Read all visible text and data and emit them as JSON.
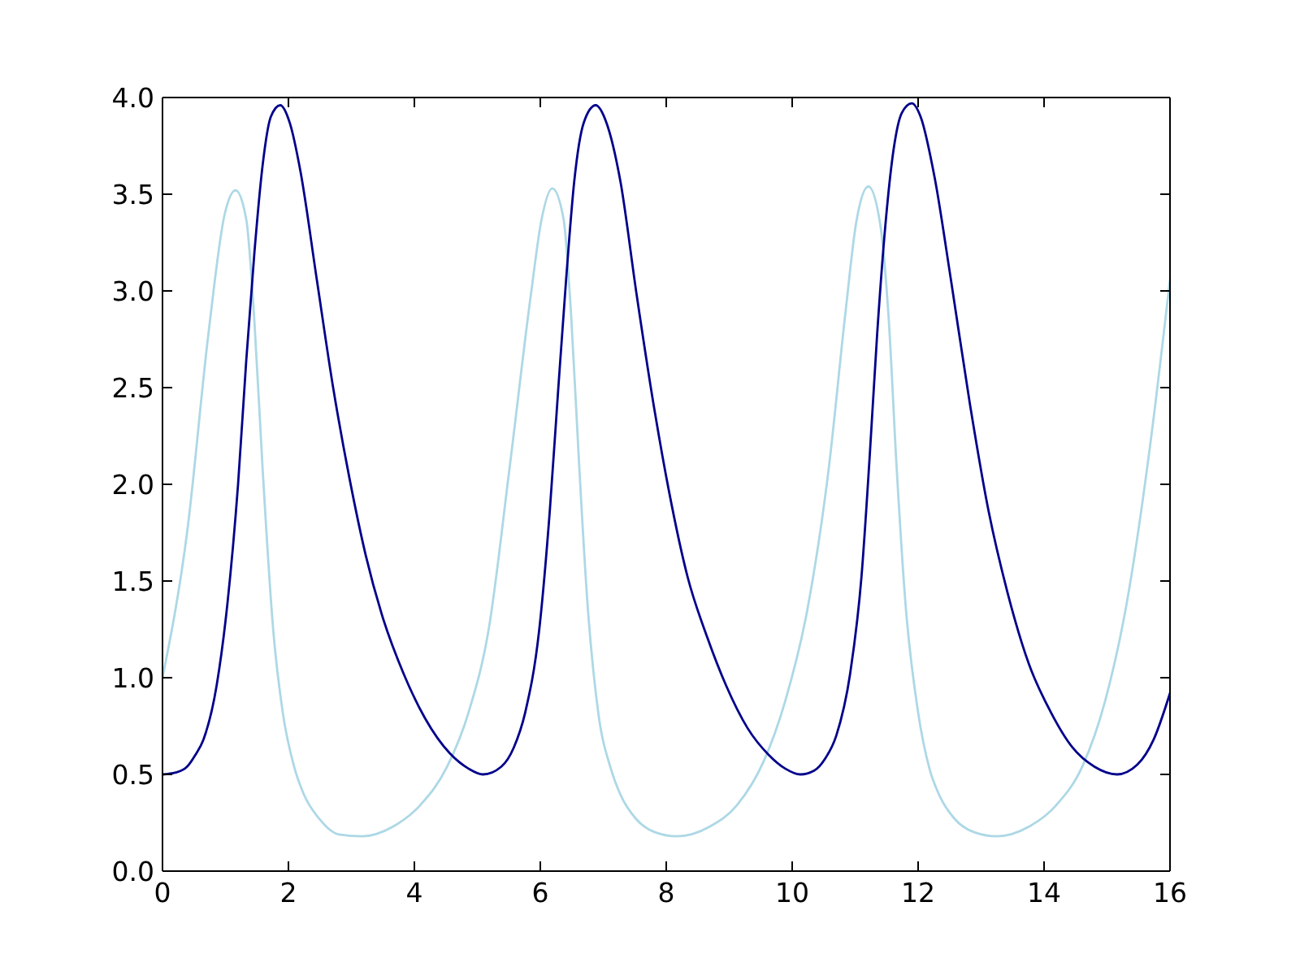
{
  "chart_data": {
    "type": "line",
    "xlim": [
      0,
      16
    ],
    "xticks": [
      0,
      2,
      4,
      6,
      8,
      10,
      12,
      14,
      16
    ],
    "ylim": [
      0,
      4
    ],
    "yticks": [
      {
        "value": 0,
        "label": "0.0"
      },
      0.5,
      {
        "value": 1,
        "label": "1.0"
      },
      1.5,
      {
        "value": 2,
        "label": "2.0"
      },
      2.5,
      {
        "value": 3,
        "label": "3.0"
      },
      3.5,
      {
        "value": 4,
        "label": "4.0"
      }
    ],
    "series": [
      {
        "color": "#add8e6",
        "x": [
          0,
          0.39,
          0.73,
          0.99,
          1.16,
          1.33,
          1.46,
          1.59,
          1.76,
          1.91,
          2.09,
          2.24,
          2.49,
          2.8,
          3.17,
          3.66,
          4.09,
          4.52,
          4.86,
          5.18,
          5.51,
          5.85,
          6.02,
          6.19,
          6.37,
          6.49,
          6.62,
          6.75,
          6.92,
          7.12,
          7.28,
          7.52,
          7.83,
          8.17,
          8.69,
          9.12,
          9.55,
          9.89,
          10.24,
          10.58,
          10.84,
          11.02,
          11.21,
          11.4,
          11.53,
          11.66,
          11.8,
          12,
          12.18,
          12.34,
          12.58,
          12.9,
          13.25,
          13.76,
          14.19,
          14.62,
          14.97,
          15.31,
          15.66,
          16
        ],
        "values": [
          1.0,
          1.75,
          2.78,
          3.4,
          3.52,
          3.37,
          2.84,
          2.08,
          1.24,
          0.82,
          0.54,
          0.4,
          0.27,
          0.19,
          0.18,
          0.23,
          0.34,
          0.54,
          0.82,
          1.25,
          2.08,
          2.98,
          3.37,
          3.53,
          3.37,
          2.87,
          2.08,
          1.38,
          0.82,
          0.53,
          0.39,
          0.27,
          0.2,
          0.18,
          0.23,
          0.34,
          0.57,
          0.88,
          1.35,
          2.08,
          2.87,
          3.36,
          3.54,
          3.34,
          2.87,
          2.08,
          1.38,
          0.82,
          0.53,
          0.39,
          0.27,
          0.2,
          0.18,
          0.23,
          0.34,
          0.55,
          0.88,
          1.38,
          2.14,
          3.06
        ]
      },
      {
        "color": "#00008b",
        "x": [
          0,
          0.21,
          0.39,
          0.52,
          0.65,
          0.86,
          1.03,
          1.2,
          1.33,
          1.46,
          1.59,
          1.72,
          1.87,
          2.02,
          2.19,
          2.45,
          2.71,
          2.97,
          3.23,
          3.48,
          3.83,
          4.17,
          4.56,
          4.86,
          5.09,
          5.38,
          5.58,
          5.76,
          5.98,
          6.15,
          6.28,
          6.41,
          6.54,
          6.69,
          6.88,
          7.05,
          7.27,
          7.53,
          7.78,
          8.04,
          8.34,
          8.65,
          8.95,
          9.29,
          9.63,
          9.89,
          10.13,
          10.35,
          10.52,
          10.7,
          10.92,
          11.1,
          11.23,
          11.35,
          11.48,
          11.61,
          11.74,
          11.9,
          12.04,
          12.26,
          12.52,
          12.82,
          13.12,
          13.42,
          13.76,
          14.11,
          14.45,
          14.8,
          15.16,
          15.48,
          15.74,
          16
        ],
        "values": [
          0.5,
          0.51,
          0.54,
          0.6,
          0.68,
          0.96,
          1.38,
          2.0,
          2.64,
          3.2,
          3.65,
          3.9,
          3.96,
          3.87,
          3.62,
          3.06,
          2.5,
          2.03,
          1.63,
          1.33,
          1.02,
          0.79,
          0.61,
          0.53,
          0.5,
          0.54,
          0.64,
          0.82,
          1.24,
          1.86,
          2.47,
          3.06,
          3.57,
          3.87,
          3.96,
          3.87,
          3.57,
          2.98,
          2.45,
          1.97,
          1.52,
          1.21,
          0.96,
          0.74,
          0.6,
          0.53,
          0.5,
          0.52,
          0.58,
          0.7,
          1.02,
          1.52,
          2.14,
          2.78,
          3.34,
          3.73,
          3.92,
          3.97,
          3.9,
          3.59,
          3.06,
          2.42,
          1.86,
          1.44,
          1.07,
          0.82,
          0.64,
          0.54,
          0.5,
          0.55,
          0.68,
          0.92
        ]
      }
    ]
  }
}
